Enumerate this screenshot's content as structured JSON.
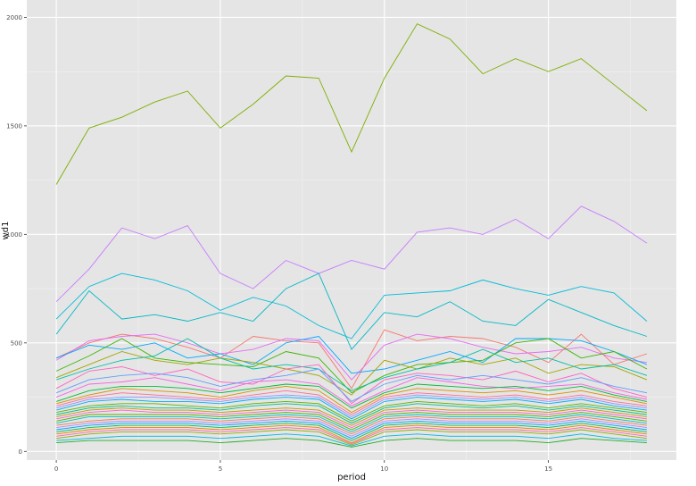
{
  "chart_data": {
    "type": "line",
    "xlabel": "period",
    "ylabel": "wd1",
    "x_ticks": [
      0,
      5,
      10,
      15
    ],
    "y_ticks": [
      0,
      500,
      1000,
      1500,
      2000
    ],
    "x_tick_labels": [
      "0",
      "5",
      "10",
      "15"
    ],
    "y_tick_labels": [
      "0",
      "500",
      "1000",
      "1500",
      "2000"
    ],
    "xlim": [
      -0.9,
      18.9
    ],
    "ylim": [
      -40,
      2080
    ],
    "grid": true,
    "legend": "none",
    "x": [
      0,
      1,
      2,
      3,
      4,
      5,
      6,
      7,
      8,
      9,
      10,
      11,
      12,
      13,
      14,
      15,
      16,
      17,
      18
    ],
    "series": [
      {
        "color": "#7cae00",
        "values": [
          1230,
          1490,
          1540,
          1610,
          1660,
          1490,
          1600,
          1730,
          1720,
          1380,
          1720,
          1970,
          1900,
          1740,
          1810,
          1750,
          1810,
          1690,
          1570
        ]
      },
      {
        "color": "#c77cff",
        "values": [
          690,
          840,
          1030,
          980,
          1040,
          820,
          750,
          880,
          820,
          880,
          840,
          1010,
          1030,
          1000,
          1070,
          980,
          1130,
          1060,
          960
        ]
      },
      {
        "color": "#00bcd8",
        "values": [
          610,
          760,
          820,
          790,
          740,
          650,
          710,
          670,
          580,
          520,
          720,
          730,
          740,
          790,
          750,
          720,
          760,
          730,
          600
        ]
      },
      {
        "color": "#00b8c4",
        "values": [
          540,
          740,
          610,
          630,
          600,
          640,
          600,
          750,
          820,
          470,
          640,
          620,
          690,
          600,
          580,
          700,
          640,
          580,
          530
        ]
      },
      {
        "color": "#f8766d",
        "values": [
          430,
          500,
          540,
          520,
          480,
          430,
          530,
          510,
          500,
          290,
          560,
          510,
          530,
          520,
          480,
          410,
          540,
          400,
          450
        ]
      },
      {
        "color": "#e76bf3",
        "values": [
          420,
          510,
          530,
          540,
          500,
          450,
          470,
          520,
          510,
          330,
          490,
          540,
          520,
          480,
          450,
          460,
          480,
          430,
          410
        ]
      },
      {
        "color": "#00a9ff",
        "values": [
          430,
          490,
          470,
          500,
          430,
          450,
          400,
          500,
          530,
          360,
          380,
          420,
          460,
          410,
          520,
          520,
          510,
          460,
          400
        ]
      },
      {
        "color": "#39b600",
        "values": [
          370,
          440,
          520,
          430,
          410,
          400,
          390,
          460,
          430,
          270,
          350,
          400,
          410,
          420,
          500,
          520,
          430,
          460,
          380
        ]
      },
      {
        "color": "#a3a500",
        "values": [
          340,
          400,
          460,
          420,
          400,
          430,
          410,
          380,
          350,
          260,
          420,
          380,
          430,
          400,
          430,
          360,
          400,
          390,
          330
        ]
      },
      {
        "color": "#00c0a4",
        "values": [
          330,
          380,
          420,
          440,
          520,
          430,
          380,
          400,
          380,
          280,
          340,
          380,
          410,
          470,
          410,
          430,
          380,
          400,
          350
        ]
      },
      {
        "color": "#ff61c3",
        "values": [
          290,
          370,
          390,
          350,
          380,
          320,
          310,
          380,
          400,
          220,
          330,
          360,
          350,
          330,
          370,
          320,
          360,
          290,
          250
        ]
      },
      {
        "color": "#619cff",
        "values": [
          270,
          330,
          350,
          360,
          340,
          300,
          330,
          350,
          380,
          230,
          310,
          350,
          330,
          350,
          330,
          310,
          340,
          300,
          270
        ]
      },
      {
        "color": "#f564e3",
        "values": [
          250,
          310,
          320,
          340,
          310,
          280,
          320,
          330,
          310,
          210,
          280,
          340,
          320,
          300,
          290,
          300,
          310,
          270,
          240
        ]
      },
      {
        "color": "#00ba38",
        "values": [
          230,
          280,
          300,
          300,
          290,
          270,
          290,
          310,
          300,
          200,
          270,
          310,
          300,
          290,
          300,
          280,
          300,
          260,
          230
        ]
      },
      {
        "color": "#d89000",
        "values": [
          220,
          260,
          290,
          280,
          270,
          250,
          280,
          300,
          280,
          180,
          260,
          290,
          280,
          270,
          280,
          260,
          280,
          250,
          220
        ]
      },
      {
        "color": "#ff6c91",
        "values": [
          210,
          250,
          270,
          260,
          250,
          240,
          260,
          280,
          260,
          170,
          250,
          270,
          260,
          250,
          260,
          240,
          260,
          230,
          210
        ]
      },
      {
        "color": "#9590ff",
        "values": [
          200,
          240,
          250,
          250,
          240,
          230,
          250,
          260,
          250,
          160,
          240,
          260,
          250,
          240,
          250,
          230,
          250,
          220,
          200
        ]
      },
      {
        "color": "#00b0f6",
        "values": [
          190,
          230,
          240,
          230,
          230,
          220,
          240,
          250,
          240,
          150,
          230,
          250,
          240,
          230,
          240,
          220,
          240,
          210,
          190
        ]
      },
      {
        "color": "#5eb300",
        "values": [
          180,
          210,
          220,
          220,
          210,
          200,
          220,
          230,
          220,
          140,
          210,
          230,
          220,
          210,
          220,
          200,
          220,
          200,
          180
        ]
      },
      {
        "color": "#00c08b",
        "values": [
          170,
          200,
          210,
          200,
          200,
          190,
          210,
          220,
          210,
          130,
          200,
          220,
          210,
          200,
          210,
          190,
          210,
          190,
          170
        ]
      },
      {
        "color": "#c49a00",
        "values": [
          160,
          190,
          200,
          190,
          190,
          180,
          190,
          200,
          190,
          120,
          190,
          200,
          190,
          190,
          190,
          180,
          200,
          180,
          160
        ]
      },
      {
        "color": "#fd61d1",
        "values": [
          150,
          180,
          190,
          180,
          180,
          170,
          180,
          190,
          180,
          110,
          180,
          190,
          180,
          180,
          180,
          170,
          190,
          170,
          150
        ]
      },
      {
        "color": "#53b400",
        "values": [
          140,
          170,
          170,
          170,
          170,
          160,
          170,
          180,
          170,
          100,
          170,
          180,
          170,
          170,
          170,
          160,
          180,
          160,
          140
        ]
      },
      {
        "color": "#00bfc4",
        "values": [
          130,
          160,
          160,
          160,
          160,
          150,
          160,
          170,
          160,
          90,
          160,
          170,
          160,
          160,
          160,
          150,
          170,
          150,
          130
        ]
      },
      {
        "color": "#ef7f49",
        "values": [
          120,
          140,
          150,
          150,
          150,
          140,
          150,
          160,
          150,
          80,
          150,
          160,
          150,
          150,
          150,
          140,
          160,
          140,
          120
        ]
      },
      {
        "color": "#b385ff",
        "values": [
          110,
          130,
          140,
          140,
          140,
          130,
          140,
          150,
          140,
          70,
          140,
          150,
          140,
          140,
          140,
          130,
          150,
          130,
          110
        ]
      },
      {
        "color": "#00a5ff",
        "values": [
          100,
          120,
          130,
          130,
          130,
          120,
          130,
          140,
          130,
          60,
          130,
          140,
          130,
          130,
          130,
          120,
          140,
          120,
          100
        ]
      },
      {
        "color": "#00bd5c",
        "values": [
          90,
          110,
          120,
          120,
          120,
          110,
          120,
          130,
          120,
          50,
          120,
          130,
          120,
          120,
          120,
          110,
          130,
          110,
          90
        ]
      },
      {
        "color": "#e58700",
        "values": [
          80,
          100,
          110,
          110,
          110,
          100,
          110,
          120,
          110,
          40,
          110,
          120,
          110,
          110,
          110,
          100,
          120,
          100,
          80
        ]
      },
      {
        "color": "#ff64b0",
        "values": [
          70,
          90,
          100,
          100,
          100,
          90,
          100,
          110,
          100,
          35,
          100,
          110,
          100,
          100,
          100,
          90,
          110,
          90,
          70
        ]
      },
      {
        "color": "#8ab100",
        "values": [
          60,
          80,
          90,
          90,
          90,
          80,
          90,
          100,
          90,
          30,
          90,
          100,
          90,
          90,
          90,
          80,
          100,
          80,
          60
        ]
      },
      {
        "color": "#00b9e3",
        "values": [
          50,
          60,
          70,
          70,
          70,
          60,
          70,
          80,
          70,
          25,
          70,
          80,
          70,
          70,
          70,
          60,
          80,
          60,
          50
        ]
      },
      {
        "color": "#1fad1f",
        "values": [
          40,
          50,
          50,
          50,
          50,
          40,
          50,
          60,
          50,
          20,
          50,
          60,
          50,
          50,
          50,
          40,
          60,
          50,
          40
        ]
      }
    ]
  }
}
